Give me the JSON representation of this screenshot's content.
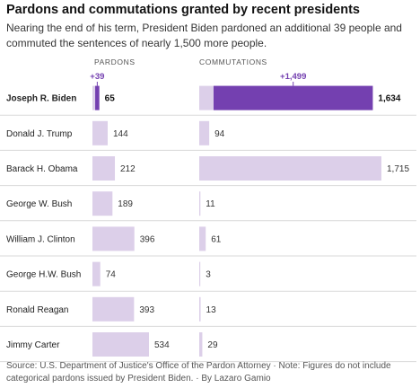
{
  "title": "Pardons and commutations granted by recent presidents",
  "subtitle": "Nearing the end of his term, President Biden pardoned an additional 39 people and commuted the sentences of nearly 1,500 more people.",
  "source": "Source: U.S. Department of Justice's Office of the Pardon Attorney · Note: Figures do not include categorical pardons issued by President Biden. · By Lazaro Gamio",
  "colors": {
    "bar_light": "#dccfe9",
    "bar_dark": "#7440b0",
    "annotation": "#7440b0",
    "row_line": "#d9d9d9"
  },
  "chart_data": {
    "type": "bar",
    "panels": [
      "PARDONS",
      "COMMUTATIONS"
    ],
    "categories": [
      "Joseph R. Biden",
      "Donald J. Trump",
      "Barack H. Obama",
      "George W. Bush",
      "William J. Clinton",
      "George H.W. Bush",
      "Ronald Reagan",
      "Jimmy Carter"
    ],
    "highlight_category": "Joseph R. Biden",
    "series": [
      {
        "name": "PARDONS",
        "values": [
          65,
          144,
          212,
          189,
          396,
          74,
          393,
          534
        ],
        "labels": [
          "65",
          "144",
          "212",
          "189",
          "396",
          "74",
          "393",
          "534"
        ]
      },
      {
        "name": "COMMUTATIONS",
        "values": [
          1634,
          94,
          1715,
          11,
          61,
          3,
          13,
          29
        ],
        "labels": [
          "1,634",
          "94",
          "1,715",
          "11",
          "61",
          "3",
          "13",
          "29"
        ]
      }
    ],
    "biden_recent_additions": {
      "PARDONS": 39,
      "COMMUTATIONS": 1499
    },
    "annotations": [
      "+39",
      "+1,499"
    ]
  }
}
